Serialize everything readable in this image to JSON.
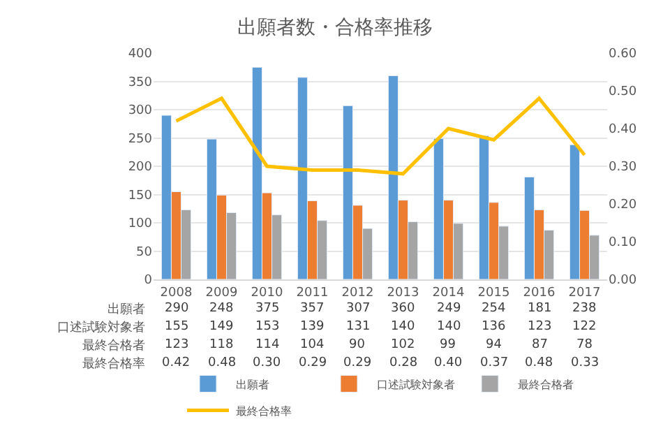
{
  "chart_data": {
    "type": "bar",
    "title": "出願者数・合格率推移",
    "categories": [
      "2008",
      "2009",
      "2010",
      "2011",
      "2012",
      "2013",
      "2014",
      "2015",
      "2016",
      "2017"
    ],
    "series": [
      {
        "name": "出願者",
        "color": "#5b9bd5",
        "values": [
          290,
          248,
          375,
          357,
          307,
          360,
          249,
          254,
          181,
          238
        ],
        "value_labels": [
          "290",
          "248",
          "375",
          "357",
          "307",
          "360",
          "249",
          "254",
          "181",
          "238"
        ]
      },
      {
        "name": "口述試験対象者",
        "color": "#ed7d31",
        "values": [
          155,
          149,
          153,
          139,
          131,
          140,
          140,
          136,
          123,
          122
        ],
        "value_labels": [
          "155",
          "149",
          "153",
          "139",
          "131",
          "140",
          "140",
          "136",
          "123",
          "122"
        ]
      },
      {
        "name": "最終合格者",
        "color": "#a5a5a5",
        "values": [
          123,
          118,
          114,
          104,
          90,
          102,
          99,
          94,
          87,
          78
        ],
        "value_labels": [
          "123",
          "118",
          "114",
          "104",
          "90",
          "102",
          "99",
          "94",
          "87",
          "78"
        ]
      },
      {
        "name": "最終合格率",
        "type": "line",
        "axis": "y2",
        "color": "#ffc000",
        "values": [
          0.42,
          0.48,
          0.3,
          0.29,
          0.29,
          0.28,
          0.4,
          0.37,
          0.48,
          0.33
        ],
        "value_labels": [
          "0.42",
          "0.48",
          "0.30",
          "0.29",
          "0.29",
          "0.28",
          "0.40",
          "0.37",
          "0.48",
          "0.33"
        ]
      }
    ],
    "ylim": [
      0,
      400
    ],
    "yticks": [
      0,
      50,
      100,
      150,
      200,
      250,
      300,
      350,
      400
    ],
    "y2lim": [
      0,
      0.6
    ],
    "y2ticks": [
      {
        "value": 0,
        "label": "0.00"
      },
      {
        "value": 0.1,
        "label": "0.10"
      },
      {
        "value": 0.2,
        "label": "0.20"
      },
      {
        "value": 0.3,
        "label": "0.30"
      },
      {
        "value": 0.4,
        "label": "0.40"
      },
      {
        "value": 0.5,
        "label": "0.50"
      },
      {
        "value": 0.6,
        "label": "0.60"
      }
    ],
    "grid": "y",
    "legend": "bottom",
    "marker": "none",
    "line_style": "solid"
  }
}
